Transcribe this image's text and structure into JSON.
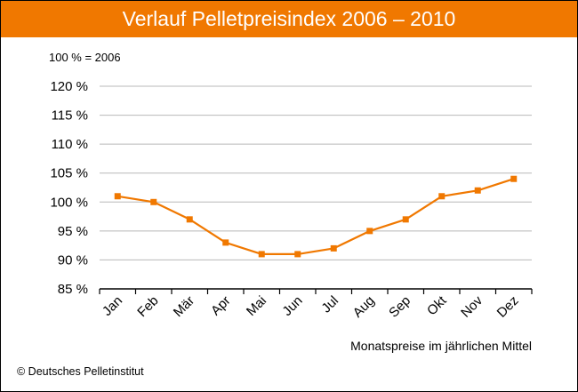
{
  "header": {
    "title": "Verlauf Pelletpreisindex 2006 – 2010",
    "base_note": "100 % = 2006"
  },
  "footer": {
    "copyright": "© Deutsches Pelletinstitut"
  },
  "colors": {
    "accent": "#f07800",
    "series": "#f07800",
    "grid": "#b8b8b8",
    "axis": "#000000"
  },
  "chart_data": {
    "type": "line",
    "title": "Verlauf Pelletpreisindex 2006 – 2010",
    "xlabel": "Monatspreise im jährlichen Mittel",
    "ylabel": "",
    "categories": [
      "Jan",
      "Feb",
      "Mär",
      "Apr",
      "Mai",
      "Jun",
      "Jul",
      "Aug",
      "Sep",
      "Okt",
      "Nov",
      "Dez"
    ],
    "series": [
      {
        "values": [
          101,
          100,
          97,
          93,
          91,
          91,
          92,
          95,
          97,
          101,
          102,
          104
        ]
      }
    ],
    "ylim": [
      85,
      120
    ],
    "yticks": [
      85,
      90,
      95,
      100,
      105,
      110,
      115,
      120
    ],
    "ytick_labels": [
      "85 %",
      "90 %",
      "95 %",
      "100 %",
      "105 %",
      "110 %",
      "115 %",
      "120 %"
    ],
    "grid": true,
    "legend": "none"
  }
}
